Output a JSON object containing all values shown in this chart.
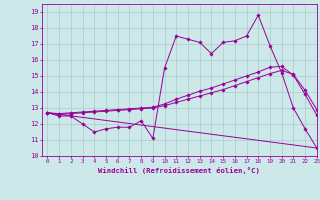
{
  "title": "",
  "xlabel": "Windchill (Refroidissement éolien,°C)",
  "background_color": "#cce8e8",
  "grid_color": "#aacccc",
  "line_color": "#990099",
  "xlim": [
    -0.5,
    23
  ],
  "ylim": [
    10,
    19.5
  ],
  "xticks": [
    0,
    1,
    2,
    3,
    4,
    5,
    6,
    7,
    8,
    9,
    10,
    11,
    12,
    13,
    14,
    15,
    16,
    17,
    18,
    19,
    20,
    21,
    22,
    23
  ],
  "yticks": [
    10,
    11,
    12,
    13,
    14,
    15,
    16,
    17,
    18,
    19
  ],
  "series1_x": [
    0,
    1,
    2,
    3,
    4,
    5,
    6,
    7,
    8,
    9,
    10,
    11,
    12,
    13,
    14,
    15,
    16,
    17,
    18,
    19,
    20,
    21,
    22,
    23
  ],
  "series1_y": [
    12.7,
    12.5,
    12.5,
    12.0,
    11.5,
    11.7,
    11.8,
    11.8,
    12.2,
    11.1,
    15.5,
    17.5,
    17.3,
    17.1,
    16.4,
    17.1,
    17.2,
    17.5,
    18.8,
    16.9,
    15.2,
    13.0,
    11.7,
    10.5
  ],
  "series2_x": [
    0,
    1,
    2,
    3,
    4,
    5,
    6,
    7,
    8,
    9,
    10,
    11,
    12,
    13,
    14,
    15,
    16,
    17,
    18,
    19,
    20,
    21,
    22,
    23
  ],
  "series2_y": [
    12.7,
    12.6,
    12.65,
    12.7,
    12.75,
    12.8,
    12.85,
    12.9,
    12.95,
    13.0,
    13.15,
    13.35,
    13.55,
    13.75,
    13.95,
    14.15,
    14.4,
    14.65,
    14.9,
    15.15,
    15.35,
    15.1,
    14.1,
    12.9
  ],
  "series3_x": [
    0,
    1,
    2,
    3,
    4,
    5,
    6,
    7,
    8,
    9,
    10,
    11,
    12,
    13,
    14,
    15,
    16,
    17,
    18,
    19,
    20,
    21,
    22,
    23
  ],
  "series3_y": [
    12.7,
    12.65,
    12.7,
    12.75,
    12.8,
    12.85,
    12.9,
    12.95,
    13.0,
    13.05,
    13.25,
    13.55,
    13.8,
    14.05,
    14.25,
    14.5,
    14.75,
    15.0,
    15.25,
    15.55,
    15.6,
    15.05,
    13.85,
    12.55
  ],
  "series4_x": [
    0,
    23
  ],
  "series4_y": [
    12.7,
    10.5
  ]
}
